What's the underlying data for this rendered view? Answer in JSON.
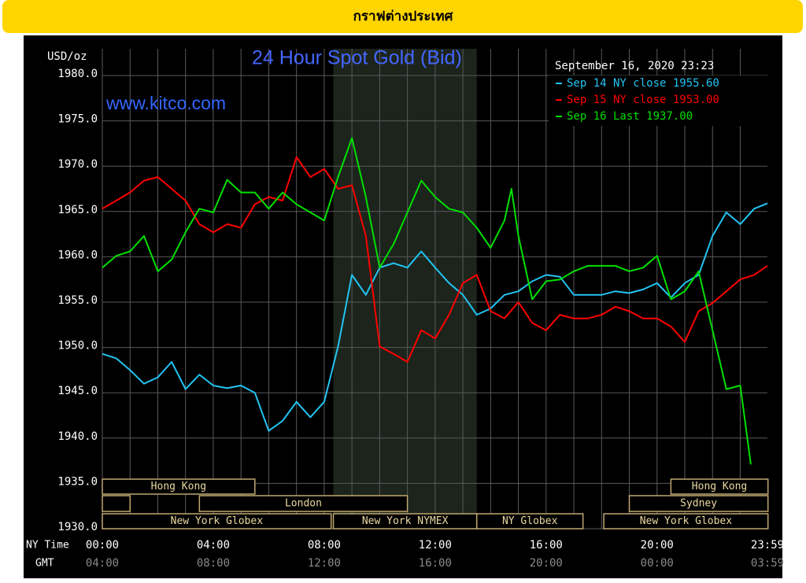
{
  "header": {
    "title": "กราฟต่างประเทศ"
  },
  "chart_data": {
    "type": "line",
    "title": "24 Hour Spot Gold (Bid)",
    "timestamp": "September 16, 2020 23:23",
    "watermark": "www.kitco.com",
    "ylabel": "USD/oz",
    "xlabel": "NY Time",
    "x2label": "GMT",
    "ylim": [
      1930,
      1980
    ],
    "yticks": [
      {
        "value": 1930,
        "label": "1930.0"
      },
      {
        "value": 1935,
        "label": "1935.0"
      },
      {
        "value": 1940,
        "label": "1940.0"
      },
      {
        "value": 1945,
        "label": "1945.0"
      },
      {
        "value": 1950,
        "label": "1950.0"
      },
      {
        "value": 1955,
        "label": "1955.0"
      },
      {
        "value": 1960,
        "label": "1960.0"
      },
      {
        "value": 1965,
        "label": "1965.0"
      },
      {
        "value": 1970,
        "label": "1970.0"
      },
      {
        "value": 1975,
        "label": "1975.0"
      },
      {
        "value": 1980,
        "label": "1980.0"
      }
    ],
    "xlim": [
      0,
      23.98
    ],
    "xticks": [
      {
        "value": 0,
        "label": "00:00"
      },
      {
        "value": 4,
        "label": "04:00"
      },
      {
        "value": 8,
        "label": "08:00"
      },
      {
        "value": 12,
        "label": "12:00"
      },
      {
        "value": 16,
        "label": "16:00"
      },
      {
        "value": 20,
        "label": "20:00"
      },
      {
        "value": 23.98,
        "label": "23:59"
      }
    ],
    "gmt_tick_labels": [
      "04:00",
      "08:00",
      "12:00",
      "16:00",
      "20:00",
      "00:00",
      "03:59"
    ],
    "xgrid": [
      0,
      1,
      2,
      3,
      4,
      5,
      6,
      7,
      8,
      9,
      10,
      11,
      12,
      13,
      14,
      15,
      16,
      17,
      18,
      19,
      20,
      21,
      22,
      23
    ],
    "grid": true,
    "nymex_hours": [
      8.33,
      13.5
    ],
    "sessions": [
      [
        {
          "label": "Hong Kong",
          "start": 0,
          "end": 5.5
        },
        {
          "label": "Hong Kong",
          "start": 20.5,
          "end": 24
        }
      ],
      [
        {
          "start": 0,
          "end": 1
        },
        {
          "label": "London",
          "start": 3.5,
          "end": 11
        },
        {
          "label": "Sydney",
          "start": 19,
          "end": 24
        }
      ],
      [
        {
          "label": "New York Globex",
          "start": 0,
          "end": 8.25
        },
        {
          "label": "New York NYMEX",
          "start": 8.33,
          "end": 13.5
        },
        {
          "label": "NY Globex",
          "start": 13.5,
          "end": 17.33
        },
        {
          "label": "New York Globex",
          "start": 18.08,
          "end": 24
        }
      ]
    ],
    "series": [
      {
        "name": "Sep 14 NY close 1955.60",
        "color": "#22c4f2",
        "x": [
          0,
          0.5,
          1,
          1.5,
          2,
          2.5,
          3,
          3.5,
          4,
          4.5,
          5,
          5.5,
          6,
          6.5,
          7,
          7.5,
          8,
          8.5,
          9,
          9.5,
          10,
          10.5,
          11,
          11.5,
          12,
          12.5,
          13,
          13.5,
          14,
          14.5,
          15,
          15.5,
          16,
          16.5,
          17,
          17.5,
          18,
          18.5,
          19,
          19.5,
          20,
          20.5,
          21,
          21.5,
          22,
          22.5,
          23,
          23.5,
          23.98
        ],
        "values": [
          1949.3,
          1948.8,
          1947.5,
          1946,
          1946.7,
          1948.4,
          1945.4,
          1947,
          1945.8,
          1945.5,
          1945.8,
          1945,
          1940.8,
          1941.9,
          1944,
          1942.3,
          1944,
          1950.1,
          1958,
          1955.8,
          1958.8,
          1959.3,
          1958.8,
          1960.6,
          1958.8,
          1957.1,
          1955.8,
          1953.6,
          1954.3,
          1955.8,
          1956.2,
          1957.3,
          1958,
          1957.8,
          1955.8,
          1955.8,
          1955.8,
          1956.2,
          1956,
          1956.4,
          1957.1,
          1955.5,
          1957.1,
          1958,
          1962.3,
          1964.9,
          1963.6,
          1965.3,
          1965.9
        ]
      },
      {
        "name": "Sep 15 NY close 1953.00",
        "color": "#ff0000",
        "x": [
          0,
          0.5,
          1,
          1.5,
          2,
          2.5,
          3,
          3.5,
          4,
          4.5,
          5,
          5.5,
          6,
          6.5,
          7,
          7.5,
          8,
          8.5,
          9,
          9.5,
          10,
          10.5,
          11,
          11.5,
          12,
          12.5,
          13,
          13.5,
          14,
          14.5,
          15,
          15.5,
          16,
          16.5,
          17,
          17.5,
          18,
          18.5,
          19,
          19.5,
          20,
          20.5,
          21,
          21.5,
          22,
          22.5,
          23,
          23.5,
          23.98
        ],
        "values": [
          1965.3,
          1966.2,
          1967.1,
          1968.4,
          1968.8,
          1967.5,
          1966.2,
          1963.6,
          1962.7,
          1963.6,
          1963.2,
          1965.8,
          1966.6,
          1966.2,
          1971,
          1968.8,
          1969.7,
          1967.5,
          1967.9,
          1962.3,
          1950.1,
          1949.3,
          1948.4,
          1951.9,
          1951,
          1953.6,
          1957.1,
          1958,
          1954,
          1953.2,
          1955,
          1952.7,
          1951.9,
          1953.6,
          1953.2,
          1953.2,
          1953.6,
          1954.5,
          1954,
          1953.2,
          1953.2,
          1952.3,
          1950.6,
          1954,
          1954.9,
          1956.2,
          1957.5,
          1958,
          1959
        ]
      },
      {
        "name": "Sep 16 Last 1937.00",
        "color": "#00e000",
        "x": [
          0,
          0.5,
          1,
          1.5,
          2,
          2.5,
          3,
          3.5,
          4,
          4.5,
          5,
          5.5,
          6,
          6.5,
          7,
          7.5,
          8,
          8.5,
          9,
          9.5,
          10,
          10.5,
          11,
          11.5,
          12,
          12.5,
          13,
          13.5,
          14,
          14.5,
          14.75,
          15,
          15.5,
          16,
          16.5,
          17,
          17.5,
          18,
          18.5,
          19,
          19.5,
          20,
          20.5,
          21,
          21.5,
          22,
          22.5,
          23,
          23.38
        ],
        "values": [
          1958.8,
          1960.1,
          1960.6,
          1962.3,
          1958.4,
          1959.7,
          1962.7,
          1965.3,
          1964.9,
          1968.5,
          1967.1,
          1967.1,
          1965.3,
          1967.1,
          1965.8,
          1964.9,
          1964,
          1968.8,
          1973.1,
          1966.6,
          1958.8,
          1961.4,
          1964.9,
          1968.4,
          1966.6,
          1965.3,
          1964.9,
          1963.2,
          1961,
          1964,
          1967.5,
          1962.3,
          1955.3,
          1957.3,
          1957.5,
          1958.4,
          1959,
          1959,
          1959,
          1958.4,
          1958.8,
          1960.1,
          1955.3,
          1956.2,
          1958.4,
          1951.9,
          1945.4,
          1945.8,
          1937.1
        ]
      }
    ]
  }
}
